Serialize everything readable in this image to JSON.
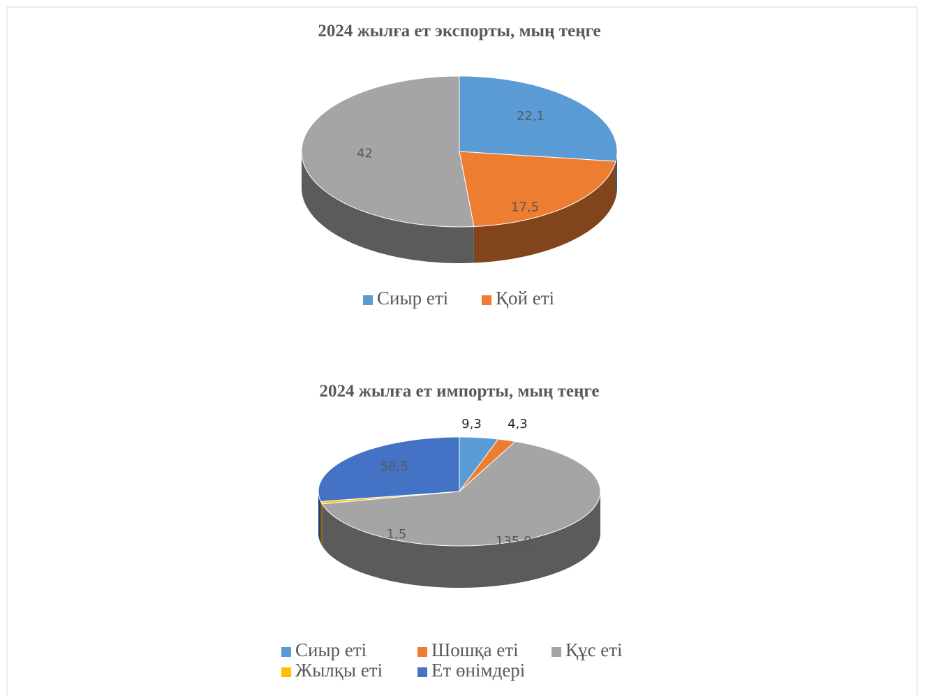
{
  "chart_data": [
    {
      "type": "pie3d",
      "title": "2024 жылға ет экспорты, мың теңге",
      "categories": [
        "Сиыр еті",
        "Қой еті",
        null
      ],
      "values": [
        22.1,
        17.5,
        42
      ],
      "value_labels": [
        "22,1",
        "17,5",
        "42"
      ],
      "colors": [
        "#5b9bd5",
        "#ed7d31",
        "#a5a5a5"
      ]
    },
    {
      "type": "pie3d",
      "title": "2024 жылға ет импорты, мың теңге",
      "categories": [
        "Сиыр еті",
        "Шошқа еті",
        "Құс еті",
        "Жылқы еті",
        "Ет өнімдері"
      ],
      "values": [
        9.3,
        4.3,
        135.8,
        1.5,
        58.5
      ],
      "value_labels": [
        "9,3",
        "4,3",
        "135,8",
        "1,5",
        "58,5"
      ],
      "colors": [
        "#5b9bd5",
        "#ed7d31",
        "#a5a5a5",
        "#ffc000",
        "#4472c4"
      ]
    }
  ]
}
